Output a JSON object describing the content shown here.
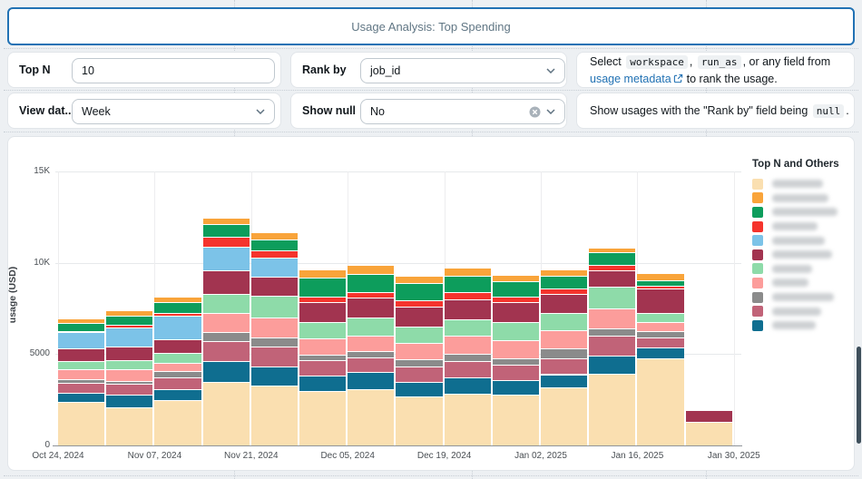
{
  "header": {
    "title": "Usage Analysis: Top Spending"
  },
  "controls": {
    "top_n": {
      "label": "Top N",
      "value": "10"
    },
    "rank_by": {
      "label": "Rank by",
      "value": "job_id"
    },
    "view_data": {
      "label": "View dat...",
      "value": "Week"
    },
    "show_null": {
      "label": "Show null",
      "value": "No"
    }
  },
  "hints": {
    "rank": {
      "t1": "Select",
      "code1": "workspace",
      "sep1": ",",
      "code2": "run_as",
      "t2": ", or any field from",
      "link": "usage metadata",
      "t3": "to rank the usage."
    },
    "null": {
      "t1": "Show usages with the \"Rank by\" field being",
      "code1": "null",
      "t2": "."
    }
  },
  "legend": {
    "title": "Top N and Others",
    "items": [
      {
        "color": "#FADFB0",
        "label": "",
        "redacted": true
      },
      {
        "color": "#F9A43A",
        "label": "",
        "redacted": true
      },
      {
        "color": "#0D9D5C",
        "label": "",
        "redacted": true
      },
      {
        "color": "#F5342D",
        "label": "",
        "redacted": true
      },
      {
        "color": "#7CC3E8",
        "label": "",
        "redacted": true
      },
      {
        "color": "#A23450",
        "label": "",
        "redacted": true
      },
      {
        "color": "#8EDBA9",
        "label": "",
        "redacted": true
      },
      {
        "color": "#FC9D9B",
        "label": "",
        "redacted": true
      },
      {
        "color": "#8B8B8B",
        "label": "",
        "redacted": true
      },
      {
        "color": "#C16378",
        "label": "",
        "redacted": true
      },
      {
        "color": "#0F6E90",
        "label": "",
        "redacted": true
      }
    ]
  },
  "chart_data": {
    "type": "bar",
    "stacked": true,
    "title": "",
    "xlabel": "",
    "ylabel": "usage (USD)",
    "ylim": [
      0,
      15000
    ],
    "grid": true,
    "legend_position": "right",
    "yticks": [
      {
        "value": 0,
        "label": "0"
      },
      {
        "value": 5000,
        "label": "5000"
      },
      {
        "value": 10000,
        "label": "10K"
      },
      {
        "value": 15000,
        "label": "15K"
      }
    ],
    "x_week_starts": [
      "Oct 24, 2024",
      "Oct 31, 2024",
      "Nov 07, 2024",
      "Nov 14, 2024",
      "Nov 21, 2024",
      "Nov 28, 2024",
      "Dec 05, 2024",
      "Dec 12, 2024",
      "Dec 19, 2024",
      "Dec 26, 2024",
      "Jan 02, 2025",
      "Jan 09, 2025",
      "Jan 16, 2025",
      "Jan 23, 2025"
    ],
    "xticks": [
      {
        "index": 0,
        "label": "Oct 24, 2024"
      },
      {
        "index": 2,
        "label": "Nov 07, 2024"
      },
      {
        "index": 4,
        "label": "Nov 21, 2024"
      },
      {
        "index": 6,
        "label": "Dec 05, 2024"
      },
      {
        "index": 8,
        "label": "Dec 19, 2024"
      },
      {
        "index": 10,
        "label": "Jan 02, 2025"
      },
      {
        "index": 12,
        "label": "Jan 16, 2025"
      },
      {
        "index": 14,
        "label": "Jan 30, 2025"
      }
    ],
    "series": [
      {
        "name": "",
        "redacted": true,
        "color": "#FADFB0",
        "values": [
          2400,
          2100,
          2500,
          3500,
          3300,
          3000,
          3100,
          2700,
          2850,
          2800,
          3200,
          3900,
          4750,
          1300
        ]
      },
      {
        "name": "",
        "redacted": true,
        "color": "#0F6E90",
        "values": [
          500,
          700,
          600,
          1100,
          1000,
          850,
          900,
          800,
          900,
          800,
          700,
          1000,
          600,
          0
        ]
      },
      {
        "name": "",
        "redacted": true,
        "color": "#C16378",
        "values": [
          550,
          600,
          650,
          1100,
          1100,
          800,
          800,
          800,
          850,
          800,
          850,
          1100,
          550,
          0
        ]
      },
      {
        "name": "",
        "redacted": true,
        "color": "#8B8B8B",
        "values": [
          200,
          150,
          300,
          500,
          500,
          300,
          350,
          400,
          400,
          350,
          550,
          400,
          350,
          0
        ]
      },
      {
        "name": "",
        "redacted": true,
        "color": "#FC9D9B",
        "values": [
          500,
          600,
          450,
          1050,
          1100,
          900,
          850,
          900,
          1000,
          1000,
          1000,
          1100,
          500,
          0
        ]
      },
      {
        "name": "",
        "redacted": true,
        "color": "#8EDBA9",
        "values": [
          450,
          500,
          550,
          1050,
          1200,
          900,
          1000,
          900,
          900,
          1000,
          950,
          1200,
          500,
          0
        ]
      },
      {
        "name": "",
        "redacted": true,
        "color": "#A23450",
        "values": [
          700,
          750,
          750,
          1300,
          1050,
          1100,
          1100,
          1100,
          1100,
          1100,
          1050,
          900,
          1350,
          600
        ]
      },
      {
        "name": "",
        "redacted": true,
        "color": "#7CC3E8",
        "values": [
          900,
          1050,
          1300,
          1300,
          1050,
          0,
          0,
          0,
          0,
          0,
          0,
          0,
          0,
          0
        ]
      },
      {
        "name": "",
        "redacted": true,
        "color": "#F5342D",
        "values": [
          80,
          150,
          150,
          500,
          400,
          300,
          300,
          350,
          400,
          300,
          300,
          300,
          150,
          0
        ]
      },
      {
        "name": "",
        "redacted": true,
        "color": "#0D9D5C",
        "values": [
          420,
          500,
          600,
          700,
          600,
          1050,
          1000,
          950,
          900,
          850,
          700,
          700,
          300,
          0
        ]
      },
      {
        "name": "",
        "redacted": true,
        "color": "#F9A43A",
        "values": [
          200,
          250,
          250,
          300,
          300,
          400,
          450,
          350,
          400,
          300,
          300,
          200,
          350,
          0
        ]
      }
    ]
  }
}
